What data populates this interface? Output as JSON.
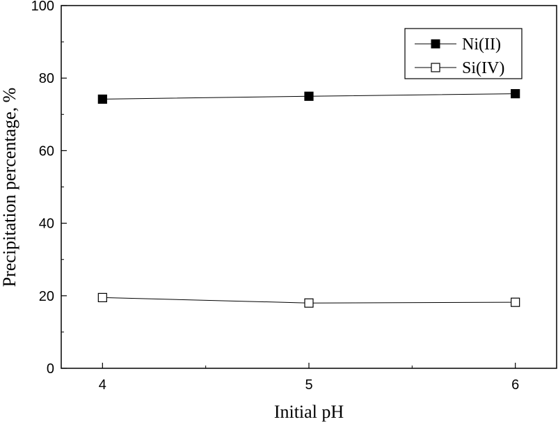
{
  "chart_data": {
    "type": "line",
    "title": "",
    "xlabel": "Initial pH",
    "ylabel": "Precipitation percentage, %",
    "x": [
      4,
      5,
      6
    ],
    "x_ticks": [
      "4",
      "5",
      "6"
    ],
    "xlim": [
      3.8,
      6.2
    ],
    "ylim": [
      0,
      100
    ],
    "y_ticks": [
      "0",
      "20",
      "40",
      "60",
      "80",
      "100"
    ],
    "grid": false,
    "legend_position": "top-right",
    "series": [
      {
        "name": "Ni(II)",
        "values": [
          74.2,
          75.0,
          75.7
        ],
        "marker": "filled-square",
        "color": "#000000"
      },
      {
        "name": "Si(IV)",
        "values": [
          19.5,
          18.0,
          18.2
        ],
        "marker": "open-square",
        "color": "#000000"
      }
    ]
  }
}
